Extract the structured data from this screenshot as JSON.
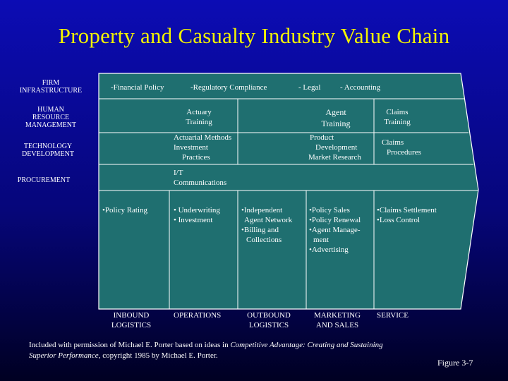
{
  "title": "Property and Casualty Industry Value Chain",
  "colors": {
    "background_top": "#0c0cb4",
    "background_bottom": "#000022",
    "title": "#f2f200",
    "chain_fill": "#1f6f70",
    "text": "#ffffff"
  },
  "support_activities": {
    "firm_infrastructure": {
      "label_line1": "FIRM",
      "label_line2": "INFRASTRUCTURE",
      "items": [
        "-Financial Policy",
        "-Regulatory Compliance",
        "- Legal",
        "- Accounting"
      ]
    },
    "human_resource_management": {
      "label_line1": "HUMAN",
      "label_line2": "RESOURCE",
      "label_line3": "MANAGEMENT",
      "actuary_line1": "Actuary",
      "actuary_line2": "Training",
      "agent_line1": "Agent",
      "agent_line2": "Training",
      "claims_line1": "Claims",
      "claims_line2": "Training"
    },
    "technology_development": {
      "label_line1": "TECHNOLOGY",
      "label_line2": "DEVELOPMENT",
      "actuarial_line1": "Actuarial Methods",
      "actuarial_line2": "Investment",
      "actuarial_line3": "Practices",
      "product_line1": "Product",
      "product_line2": "Development",
      "product_line3": "Market Research",
      "claims_line1": "Claims",
      "claims_line2": "Procedures"
    },
    "procurement": {
      "label": "PROCUREMENT",
      "it_line1": "I/T",
      "it_line2": "Communications"
    }
  },
  "primary_activities": {
    "inbound_logistics": {
      "items": [
        "•Policy Rating"
      ],
      "label_line1": "INBOUND",
      "label_line2": "LOGISTICS"
    },
    "operations": {
      "items": [
        "• Underwriting",
        "• Investment"
      ],
      "label": "OPERATIONS"
    },
    "outbound_logistics": {
      "items": [
        "•Independent",
        "Agent Network",
        "•Billing and",
        "Collections"
      ],
      "label_line1": "OUTBOUND",
      "label_line2": "LOGISTICS"
    },
    "marketing_and_sales": {
      "items": [
        "•Policy Sales",
        "•Policy Renewal",
        "•Agent Manage-",
        "ment",
        "•Advertising"
      ],
      "label_line1": "MARKETING",
      "label_line2": "AND SALES"
    },
    "service": {
      "items": [
        "•Claims Settlement",
        "•Loss Control"
      ],
      "label": "SERVICE"
    }
  },
  "footer": {
    "text1": "Included with permission of Michael E. Porter based on ideas in ",
    "book_title1": "Competitive Advantage: Creating and Sustaining",
    "book_title2": "Superior Performance",
    "text2": ", copyright 1985 by Michael E. Porter."
  },
  "figure_label": "Figure 3-7"
}
